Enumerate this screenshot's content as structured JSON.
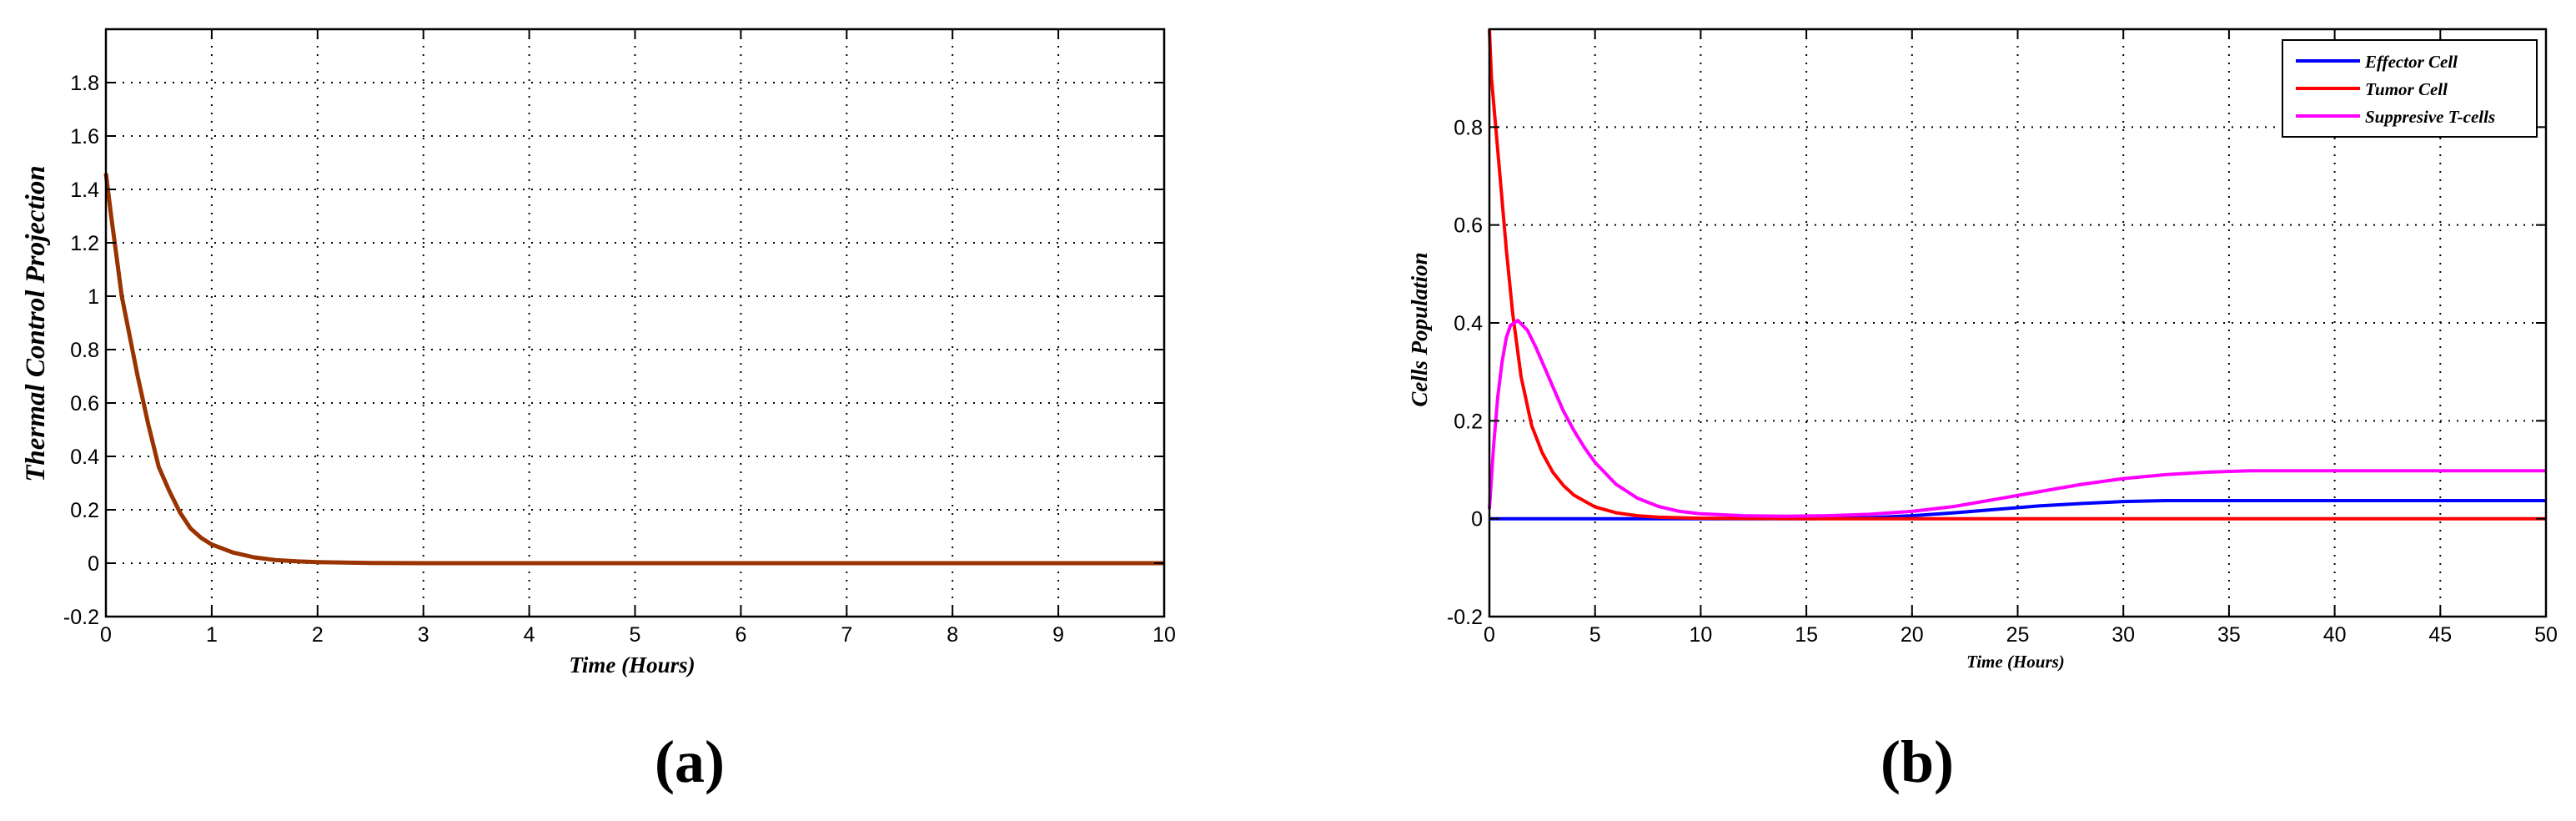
{
  "chart_data": [
    {
      "type": "line",
      "panel": "(a)",
      "title": "",
      "xlabel": "Time (Hours)",
      "ylabel": "Thermal Control Projection",
      "xlim": [
        0,
        10
      ],
      "ylim": [
        -0.2,
        2.0
      ],
      "xticks": [
        0,
        1,
        2,
        3,
        4,
        5,
        6,
        7,
        8,
        9,
        10
      ],
      "yticks": [
        -0.2,
        0,
        0.2,
        0.4,
        0.6,
        0.8,
        1,
        1.2,
        1.4,
        1.6,
        1.8
      ],
      "ytick_labels": [
        "-0.2",
        "0",
        "0.2",
        "0.4",
        "0.6",
        "0.8",
        "1",
        "1.2",
        "1.4",
        "1.6",
        "1.8"
      ],
      "grid": true,
      "legend": null,
      "series": [
        {
          "name": "Thermal Control",
          "color": "#993300",
          "x": [
            0,
            0.05,
            0.1,
            0.15,
            0.2,
            0.3,
            0.4,
            0.5,
            0.6,
            0.7,
            0.8,
            0.9,
            1.0,
            1.2,
            1.4,
            1.6,
            1.8,
            2.0,
            2.5,
            3,
            4,
            5,
            6,
            7,
            8,
            9,
            10
          ],
          "y": [
            1.46,
            1.3,
            1.15,
            1.0,
            0.9,
            0.7,
            0.52,
            0.36,
            0.27,
            0.19,
            0.13,
            0.095,
            0.07,
            0.04,
            0.022,
            0.012,
            0.007,
            0.004,
            0.001,
            0,
            0,
            0,
            0,
            0,
            0,
            0,
            0
          ]
        }
      ]
    },
    {
      "type": "line",
      "panel": "(b)",
      "title": "",
      "xlabel": "Time (Hours)",
      "ylabel": "Cells Population",
      "xlim": [
        0,
        50
      ],
      "ylim": [
        -0.2,
        1.0
      ],
      "xticks": [
        0,
        5,
        10,
        15,
        20,
        25,
        30,
        35,
        40,
        45,
        50
      ],
      "yticks": [
        -0.2,
        0,
        0.2,
        0.4,
        0.6,
        0.8
      ],
      "ytick_labels": [
        "-0.2",
        "0",
        "0.2",
        "0.4",
        "0.6",
        "0.8"
      ],
      "grid": true,
      "legend_position": "upper right",
      "series": [
        {
          "name": "Effector Cell",
          "color": "#0000ff",
          "x": [
            0,
            5,
            10,
            15,
            18,
            20,
            22,
            24,
            26,
            28,
            30,
            32,
            35,
            40,
            45,
            50
          ],
          "y": [
            0,
            0,
            0,
            0,
            0.002,
            0.006,
            0.012,
            0.019,
            0.026,
            0.031,
            0.035,
            0.037,
            0.037,
            0.037,
            0.037,
            0.037
          ]
        },
        {
          "name": "Tumor Cell",
          "color": "#ff0000",
          "x": [
            0,
            0.1,
            0.3,
            0.5,
            0.8,
            1.1,
            1.5,
            2,
            2.5,
            3,
            3.5,
            4,
            5,
            6,
            7,
            8,
            10,
            15,
            20,
            30,
            41,
            50
          ],
          "y": [
            1.0,
            0.9,
            0.8,
            0.7,
            0.55,
            0.42,
            0.29,
            0.19,
            0.135,
            0.095,
            0.068,
            0.048,
            0.024,
            0.012,
            0.006,
            0.003,
            0.001,
            0,
            0,
            0,
            0,
            0
          ]
        },
        {
          "name": "Suppresive T-cells",
          "color": "#ff00ff",
          "x": [
            0,
            0.2,
            0.4,
            0.6,
            0.8,
            1.0,
            1.35,
            1.8,
            2.2,
            2.6,
            3,
            3.5,
            4,
            4.5,
            5,
            6,
            7,
            8,
            9,
            10,
            12,
            14,
            16,
            18,
            20,
            22,
            24,
            26,
            28,
            30,
            32,
            34,
            36,
            40,
            45,
            50
          ],
          "y": [
            0.02,
            0.15,
            0.25,
            0.32,
            0.37,
            0.395,
            0.405,
            0.385,
            0.35,
            0.31,
            0.27,
            0.22,
            0.18,
            0.145,
            0.115,
            0.07,
            0.042,
            0.025,
            0.015,
            0.01,
            0.006,
            0.005,
            0.006,
            0.009,
            0.015,
            0.025,
            0.04,
            0.055,
            0.07,
            0.082,
            0.09,
            0.095,
            0.098,
            0.098,
            0.098,
            0.098
          ]
        }
      ]
    }
  ],
  "panels": {
    "a": {
      "label": "(a)",
      "xlabel": "Time (Hours)",
      "ylabel": "Thermal Control Projection"
    },
    "b": {
      "label": "(b)",
      "xlabel": "Time (Hours)",
      "ylabel": "Cells Population",
      "legend": [
        "Effector Cell",
        "Tumor Cell",
        "Suppresive T-cells"
      ]
    }
  }
}
